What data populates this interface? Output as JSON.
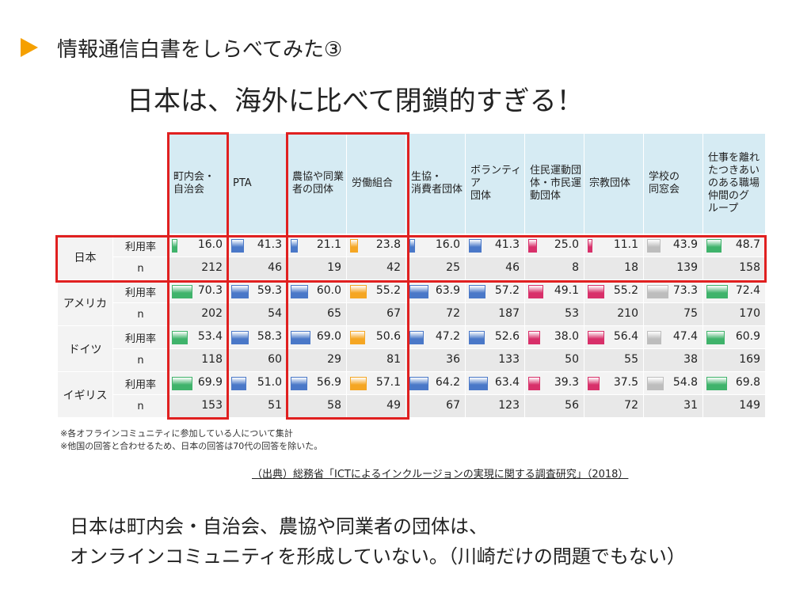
{
  "slide_heading": "情報通信白書をしらべてみた③",
  "headline": "日本は、海外に比べて閉鎖的すぎる！",
  "table": {
    "columns": [
      {
        "label": "町内会・\n自治会",
        "color": "#3fb36b"
      },
      {
        "label": "PTA",
        "color": "#4a78c8"
      },
      {
        "label": "農協や同業\n者の団体",
        "color": "#4a78c8"
      },
      {
        "label": "労働組合",
        "color": "#f5a623"
      },
      {
        "label": "生協・\n消費者団体",
        "color": "#4a78c8"
      },
      {
        "label": "ボランティア\n団体",
        "color": "#4a78c8"
      },
      {
        "label": "住民運動団\n体・市民運\n動団体",
        "color": "#d8306a"
      },
      {
        "label": "宗教団体",
        "color": "#d8306a"
      },
      {
        "label": "学校の\n同窓会",
        "color": "#bdbdbd"
      },
      {
        "label": "仕事を離れ\nたつきあい\nのある職場\n仲間のグ\nループ",
        "color": "#3fb36b"
      }
    ],
    "countries": [
      {
        "name": "日本",
        "rate_label": "利用率",
        "n_label": "n",
        "rates": [
          "16.0",
          "41.3",
          "21.1",
          "23.8",
          "16.0",
          "41.3",
          "25.0",
          "11.1",
          "43.9",
          "48.7"
        ],
        "ns": [
          "212",
          "46",
          "19",
          "42",
          "25",
          "46",
          "8",
          "18",
          "139",
          "158"
        ]
      },
      {
        "name": "アメリカ",
        "rate_label": "利用率",
        "n_label": "n",
        "rates": [
          "70.3",
          "59.3",
          "60.0",
          "55.2",
          "63.9",
          "57.2",
          "49.1",
          "55.2",
          "73.3",
          "72.4"
        ],
        "ns": [
          "202",
          "54",
          "65",
          "67",
          "72",
          "187",
          "53",
          "210",
          "75",
          "170"
        ]
      },
      {
        "name": "ドイツ",
        "rate_label": "利用率",
        "n_label": "n",
        "rates": [
          "53.4",
          "58.3",
          "69.0",
          "50.6",
          "47.2",
          "52.6",
          "38.0",
          "56.4",
          "47.4",
          "60.9"
        ],
        "ns": [
          "118",
          "60",
          "29",
          "81",
          "36",
          "133",
          "50",
          "55",
          "38",
          "169"
        ]
      },
      {
        "name": "イギリス",
        "rate_label": "利用率",
        "n_label": "n",
        "rates": [
          "69.9",
          "51.0",
          "56.9",
          "57.1",
          "64.2",
          "63.4",
          "39.3",
          "37.5",
          "54.8",
          "69.8"
        ],
        "ns": [
          "153",
          "51",
          "58",
          "49",
          "67",
          "123",
          "56",
          "72",
          "31",
          "149"
        ]
      }
    ]
  },
  "notes": [
    "※各オフラインコミュニティに参加している人について集計",
    "※他国の回答と合わせるため、日本の回答は70代の回答を除いた。"
  ],
  "source": "（出典）総務省「ICTによるインクルージョンの実現に関する調査研究」（2018）",
  "summary": [
    "日本は町内会・自治会、農協や同業者の団体は、",
    "オンラインコミュニティを形成していない。（川崎だけの問題でもない）"
  ]
}
